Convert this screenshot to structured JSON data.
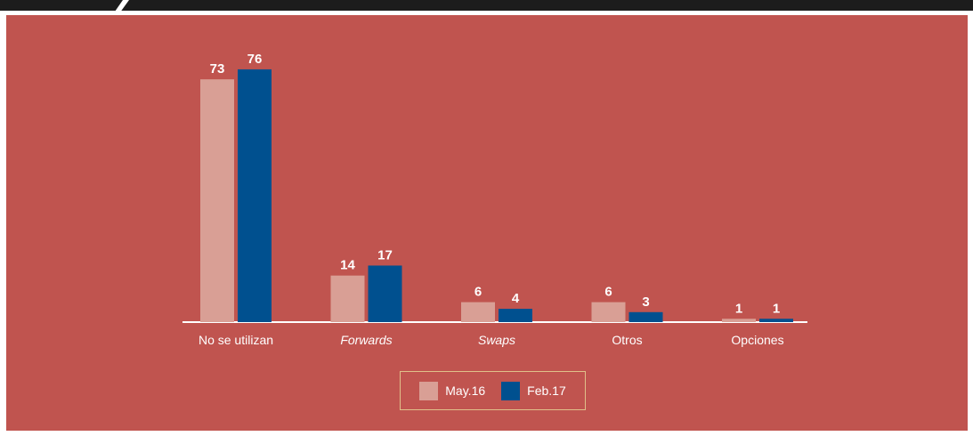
{
  "colors": {
    "panel": "#c0544f",
    "may16": "#d99f95",
    "feb17": "#00508f",
    "frame": "#1c1c1c"
  },
  "chart_data": {
    "type": "bar",
    "categories": [
      "No se utilizan",
      "Forwards",
      "Swaps",
      "Otros",
      "Opciones"
    ],
    "italic_categories": [
      "Forwards",
      "Swaps"
    ],
    "series": [
      {
        "name": "May.16",
        "values": [
          73,
          14,
          6,
          6,
          1
        ]
      },
      {
        "name": "Feb.17",
        "values": [
          76,
          17,
          4,
          3,
          1
        ]
      }
    ],
    "ylim": [
      0,
      80
    ],
    "grid": false,
    "legend_position": "bottom-center"
  },
  "legend": {
    "items": [
      "May.16",
      "Feb.17"
    ]
  }
}
